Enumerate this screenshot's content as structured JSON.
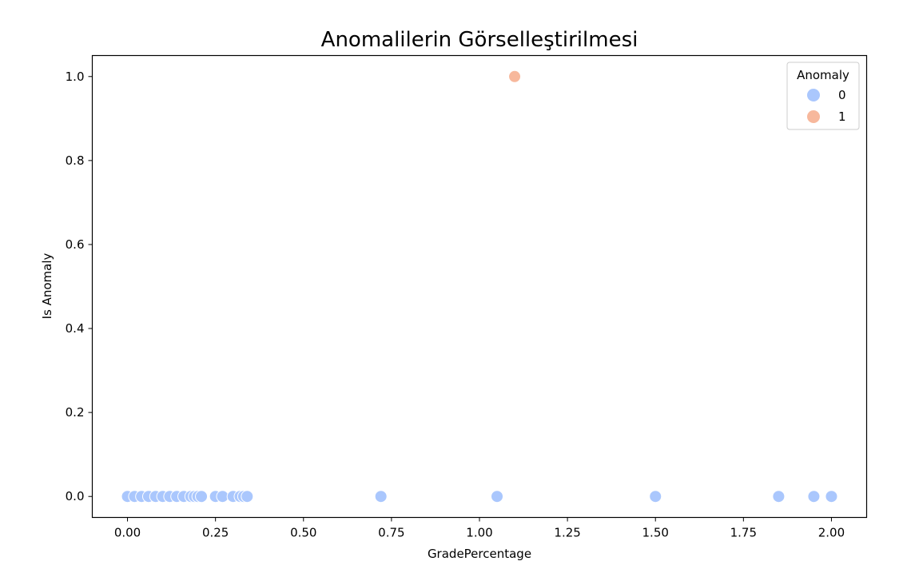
{
  "chart_data": {
    "type": "scatter",
    "title": "Anomalilerin Görselleştirilmesi",
    "xlabel": "GradePercentage",
    "ylabel": "Is Anomaly",
    "xlim": [
      -0.1,
      2.1
    ],
    "ylim": [
      -0.05,
      1.05
    ],
    "xticks": [
      0.0,
      0.25,
      0.5,
      0.75,
      1.0,
      1.25,
      1.5,
      1.75,
      2.0
    ],
    "xtick_labels": [
      "0.00",
      "0.25",
      "0.50",
      "0.75",
      "1.00",
      "1.25",
      "1.50",
      "1.75",
      "2.00"
    ],
    "yticks": [
      0.0,
      0.2,
      0.4,
      0.6,
      0.8,
      1.0
    ],
    "ytick_labels": [
      "0.0",
      "0.2",
      "0.4",
      "0.6",
      "0.8",
      "1.0"
    ],
    "grid": false,
    "legend": {
      "title": "Anomaly",
      "placement": "top-right",
      "entries": [
        {
          "label": "0",
          "color": "#aac7fd"
        },
        {
          "label": "1",
          "color": "#f7b89c"
        }
      ]
    },
    "series": [
      {
        "name": "0",
        "color": "#aac7fd",
        "points": [
          {
            "x": 0.0,
            "y": 0
          },
          {
            "x": 0.02,
            "y": 0
          },
          {
            "x": 0.04,
            "y": 0
          },
          {
            "x": 0.06,
            "y": 0
          },
          {
            "x": 0.08,
            "y": 0
          },
          {
            "x": 0.1,
            "y": 0
          },
          {
            "x": 0.12,
            "y": 0
          },
          {
            "x": 0.14,
            "y": 0
          },
          {
            "x": 0.16,
            "y": 0
          },
          {
            "x": 0.18,
            "y": 0
          },
          {
            "x": 0.19,
            "y": 0
          },
          {
            "x": 0.2,
            "y": 0
          },
          {
            "x": 0.21,
            "y": 0
          },
          {
            "x": 0.25,
            "y": 0
          },
          {
            "x": 0.27,
            "y": 0
          },
          {
            "x": 0.3,
            "y": 0
          },
          {
            "x": 0.32,
            "y": 0
          },
          {
            "x": 0.33,
            "y": 0
          },
          {
            "x": 0.34,
            "y": 0
          },
          {
            "x": 0.72,
            "y": 0
          },
          {
            "x": 1.05,
            "y": 0
          },
          {
            "x": 1.5,
            "y": 0
          },
          {
            "x": 1.85,
            "y": 0
          },
          {
            "x": 1.95,
            "y": 0
          },
          {
            "x": 2.0,
            "y": 0
          }
        ]
      },
      {
        "name": "1",
        "color": "#f7b89c",
        "points": [
          {
            "x": 1.1,
            "y": 1
          }
        ]
      }
    ]
  }
}
